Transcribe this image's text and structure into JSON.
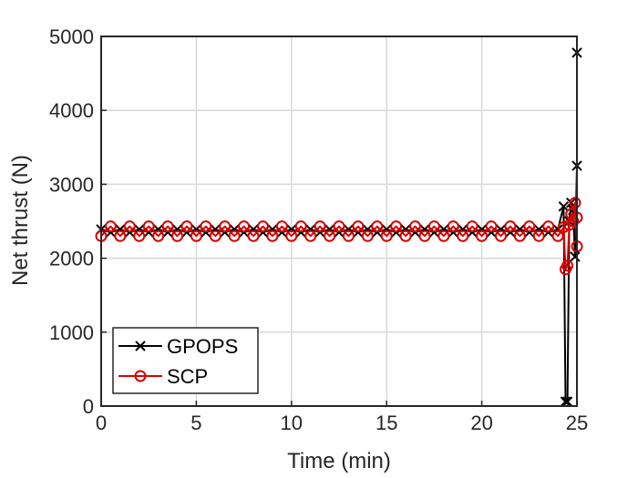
{
  "chart_data": {
    "type": "line",
    "xlabel": "Time (min)",
    "ylabel": "Net thrust (N)",
    "xlim": [
      0,
      25
    ],
    "ylim": [
      0,
      5000
    ],
    "xticks": [
      0,
      5,
      10,
      15,
      20,
      25
    ],
    "yticks": [
      0,
      1000,
      2000,
      3000,
      4000,
      5000
    ],
    "x_tick_labels": [
      "0",
      "5",
      "10",
      "15",
      "20",
      "25"
    ],
    "y_tick_labels": [
      "0",
      "1000",
      "2000",
      "3000",
      "4000",
      "5000"
    ],
    "grid": true,
    "legend": "bottom-left",
    "colors": {
      "GPOPS": "#000000",
      "SCP": "#d90000"
    },
    "series": [
      {
        "name": "GPOPS",
        "marker": "x",
        "x": [
          0,
          0.5,
          1.0,
          1.5,
          2.0,
          2.5,
          3.0,
          3.5,
          4.0,
          4.5,
          5.0,
          5.5,
          6.0,
          6.5,
          7.0,
          7.5,
          8.0,
          8.5,
          9.0,
          9.5,
          10.0,
          10.5,
          11.0,
          11.5,
          12.0,
          12.5,
          13.0,
          13.5,
          14.0,
          14.5,
          15.0,
          15.5,
          16.0,
          16.5,
          17.0,
          17.5,
          18.0,
          18.5,
          19.0,
          19.5,
          20.0,
          20.5,
          21.0,
          21.5,
          22.0,
          22.5,
          23.0,
          23.5,
          24.0,
          24.3,
          24.4,
          24.5,
          24.6,
          24.7,
          24.8,
          24.9,
          25.0,
          25.0
        ],
        "y": [
          2390,
          2350,
          2390,
          2350,
          2390,
          2350,
          2390,
          2350,
          2390,
          2350,
          2390,
          2350,
          2390,
          2350,
          2390,
          2350,
          2390,
          2350,
          2390,
          2350,
          2390,
          2350,
          2390,
          2350,
          2390,
          2350,
          2390,
          2350,
          2390,
          2350,
          2390,
          2350,
          2390,
          2350,
          2390,
          2350,
          2390,
          2350,
          2390,
          2350,
          2390,
          2350,
          2390,
          2350,
          2390,
          2350,
          2390,
          2350,
          2390,
          2700,
          60,
          60,
          2500,
          2750,
          2650,
          2020,
          3250,
          4780
        ]
      },
      {
        "name": "SCP",
        "marker": "o",
        "x": [
          0,
          0.5,
          1.0,
          1.5,
          2.0,
          2.5,
          3.0,
          3.5,
          4.0,
          4.5,
          5.0,
          5.5,
          6.0,
          6.5,
          7.0,
          7.5,
          8.0,
          8.5,
          9.0,
          9.5,
          10.0,
          10.5,
          11.0,
          11.5,
          12.0,
          12.5,
          13.0,
          13.5,
          14.0,
          14.5,
          15.0,
          15.5,
          16.0,
          16.5,
          17.0,
          17.5,
          18.0,
          18.5,
          19.0,
          19.5,
          20.0,
          20.5,
          21.0,
          21.5,
          22.0,
          22.5,
          23.0,
          23.5,
          24.0,
          24.3,
          24.4,
          24.5,
          24.6,
          24.7,
          24.8,
          24.9,
          25.0,
          25.0
        ],
        "y": [
          2300,
          2430,
          2300,
          2430,
          2300,
          2430,
          2300,
          2430,
          2300,
          2430,
          2300,
          2430,
          2300,
          2430,
          2300,
          2430,
          2300,
          2430,
          2300,
          2430,
          2300,
          2430,
          2300,
          2430,
          2300,
          2430,
          2300,
          2430,
          2300,
          2430,
          2300,
          2430,
          2300,
          2430,
          2300,
          2430,
          2300,
          2430,
          2300,
          2430,
          2300,
          2430,
          2300,
          2430,
          2300,
          2430,
          2300,
          2430,
          2300,
          2420,
          1850,
          1900,
          2450,
          2600,
          2500,
          2750,
          2160,
          2550
        ]
      }
    ]
  }
}
